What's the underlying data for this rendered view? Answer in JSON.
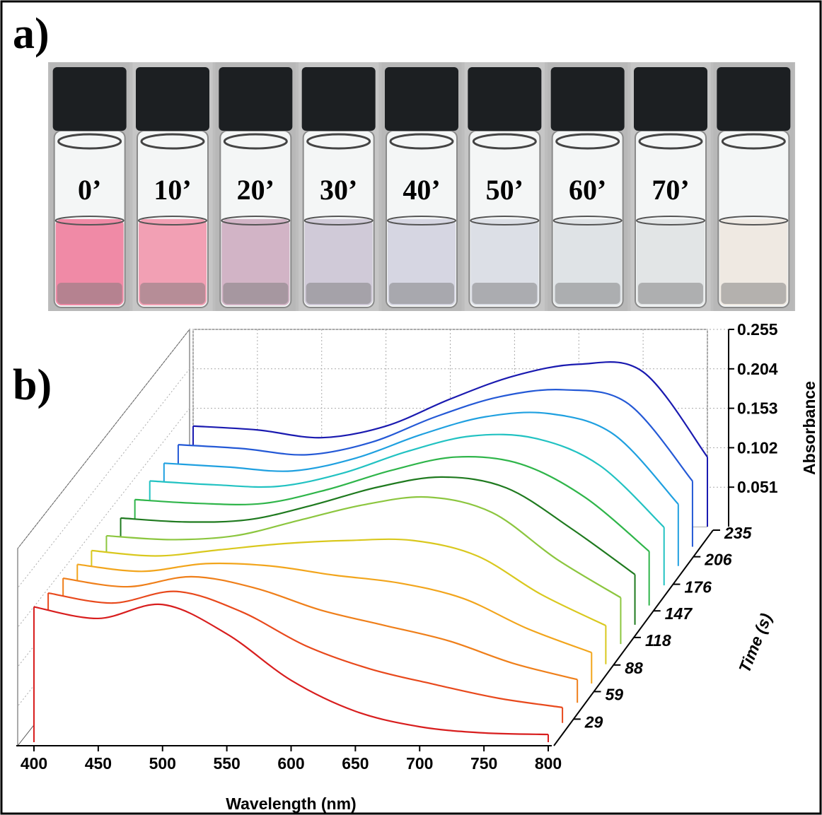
{
  "panel_a": {
    "label": "a)",
    "vial_labels": [
      "0’",
      "10’",
      "20’",
      "30’",
      "40’",
      "50’",
      "60’",
      "70’"
    ]
  },
  "panel_b": {
    "label": "b)"
  },
  "chart_data": {
    "type": "waterfall",
    "xlabel": "Wavelength (nm)",
    "ylabel": "Absorbance",
    "zlabel": "Time (s)",
    "x": [
      400,
      450,
      500,
      550,
      600,
      650,
      700,
      750,
      800
    ],
    "z": [
      0,
      21,
      43,
      64,
      85,
      107,
      128,
      149,
      171,
      192,
      213,
      235
    ],
    "series": [
      {
        "color": "#d81e1e",
        "values": [
          0.175,
          0.16,
          0.178,
          0.14,
          0.08,
          0.04,
          0.02,
          0.012,
          0.01
        ]
      },
      {
        "color": "#e8491c",
        "values": [
          0.168,
          0.155,
          0.17,
          0.144,
          0.1,
          0.07,
          0.05,
          0.032,
          0.02
        ]
      },
      {
        "color": "#ef7f1a",
        "values": [
          0.161,
          0.15,
          0.163,
          0.148,
          0.12,
          0.1,
          0.08,
          0.051,
          0.03
        ]
      },
      {
        "color": "#f2a51c",
        "values": [
          0.154,
          0.145,
          0.155,
          0.152,
          0.14,
          0.13,
          0.11,
          0.071,
          0.04
        ]
      },
      {
        "color": "#d9c81e",
        "values": [
          0.147,
          0.14,
          0.148,
          0.156,
          0.16,
          0.16,
          0.14,
          0.09,
          0.05
        ]
      },
      {
        "color": "#8cc63f",
        "values": [
          0.14,
          0.135,
          0.14,
          0.16,
          0.18,
          0.19,
          0.17,
          0.11,
          0.06
        ]
      },
      {
        "color": "#1f7a1f",
        "values": [
          0.138,
          0.133,
          0.136,
          0.155,
          0.178,
          0.191,
          0.177,
          0.125,
          0.065
        ]
      },
      {
        "color": "#2fb54a",
        "values": [
          0.137,
          0.132,
          0.132,
          0.15,
          0.175,
          0.192,
          0.183,
          0.14,
          0.07
        ]
      },
      {
        "color": "#22c2c2",
        "values": [
          0.135,
          0.13,
          0.128,
          0.145,
          0.173,
          0.193,
          0.19,
          0.155,
          0.075
        ]
      },
      {
        "color": "#1fa0e0",
        "values": [
          0.133,
          0.128,
          0.123,
          0.14,
          0.17,
          0.193,
          0.197,
          0.17,
          0.08
        ]
      },
      {
        "color": "#2459d6",
        "values": [
          0.132,
          0.127,
          0.119,
          0.135,
          0.168,
          0.194,
          0.203,
          0.185,
          0.085
        ]
      },
      {
        "color": "#1a1ab0",
        "values": [
          0.13,
          0.125,
          0.115,
          0.13,
          0.165,
          0.195,
          0.21,
          0.2,
          0.09
        ]
      }
    ],
    "xlim": [
      400,
      800
    ],
    "xticks": [
      400,
      450,
      500,
      550,
      600,
      650,
      700,
      750,
      800
    ],
    "ylim": [
      0,
      0.255
    ],
    "yticks": [
      0.051,
      0.102,
      0.153,
      0.204,
      0.255
    ],
    "zlim": [
      0,
      235
    ],
    "zticks": [
      29,
      59,
      88,
      118,
      147,
      176,
      206,
      235
    ],
    "grid": true
  }
}
